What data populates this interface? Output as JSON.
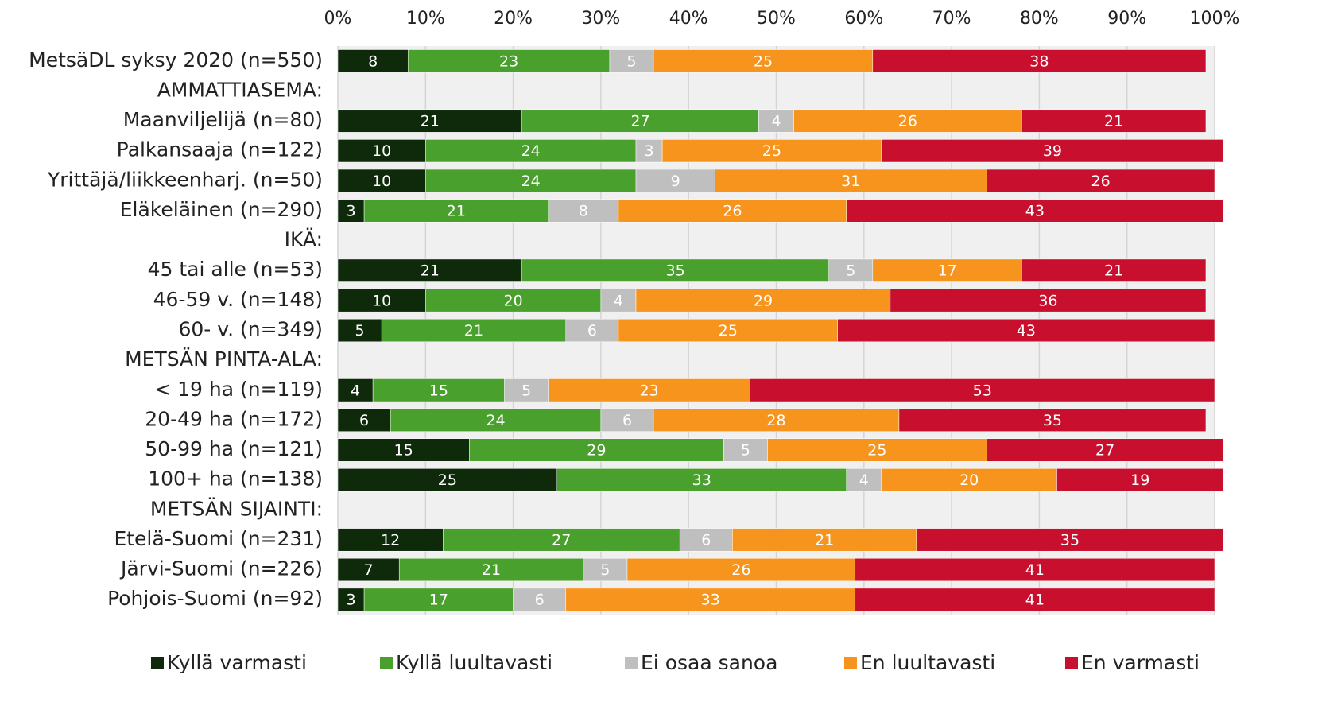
{
  "chart_data": {
    "type": "stacked_bar_horizontal",
    "categories": [
      "MetsäDL syksy 2020 (n=550)",
      "AMMATTIASEMA:",
      "Maanviljelijä (n=80)",
      "Palkansaaja (n=122)",
      "Yrittäjä/liikkeenharj. (n=50)",
      "Eläkeläinen (n=290)",
      "IKÄ:",
      "45 tai alle (n=53)",
      "46-59 v. (n=148)",
      "60- v. (n=349)",
      "METSÄN PINTA-ALA:",
      "< 19 ha (n=119)",
      "20-49 ha (n=172)",
      "50-99 ha (n=121)",
      "100+ ha (n=138)",
      "METSÄN SIJAINTI:",
      "Etelä-Suomi (n=231)",
      "Järvi-Suomi (n=226)",
      "Pohjois-Suomi (n=92)"
    ],
    "series": [
      {
        "name": "Kyllä varmasti",
        "color": "#0e2a0b",
        "values": [
          8,
          null,
          21,
          10,
          10,
          3,
          null,
          21,
          10,
          5,
          null,
          4,
          6,
          15,
          25,
          null,
          12,
          7,
          3
        ]
      },
      {
        "name": "Kyllä luultavasti",
        "color": "#4aa02c",
        "values": [
          23,
          null,
          27,
          24,
          24,
          21,
          null,
          35,
          20,
          21,
          null,
          15,
          24,
          29,
          33,
          null,
          27,
          21,
          17
        ]
      },
      {
        "name": "Ei osaa sanoa",
        "color": "#bfbfbf",
        "values": [
          5,
          null,
          4,
          3,
          9,
          8,
          null,
          5,
          4,
          6,
          null,
          5,
          6,
          5,
          4,
          null,
          6,
          5,
          6
        ]
      },
      {
        "name": "En luultavasti",
        "color": "#f7941d",
        "values": [
          25,
          null,
          26,
          25,
          31,
          26,
          null,
          17,
          29,
          25,
          null,
          23,
          28,
          25,
          20,
          null,
          21,
          26,
          33
        ]
      },
      {
        "name": "En varmasti",
        "color": "#c8102e",
        "values": [
          38,
          null,
          21,
          39,
          26,
          43,
          null,
          21,
          36,
          43,
          null,
          53,
          35,
          27,
          19,
          null,
          35,
          41,
          41
        ]
      }
    ],
    "xlim": [
      0,
      100
    ],
    "xticks": [
      {
        "value": 0,
        "label": "0%"
      },
      {
        "value": 10,
        "label": "10%"
      },
      {
        "value": 20,
        "label": "20%"
      },
      {
        "value": 30,
        "label": "30%"
      },
      {
        "value": 40,
        "label": "40%"
      },
      {
        "value": 50,
        "label": "50%"
      },
      {
        "value": 60,
        "label": "60%"
      },
      {
        "value": 70,
        "label": "70%"
      },
      {
        "value": 80,
        "label": "80%"
      },
      {
        "value": 90,
        "label": "90%"
      },
      {
        "value": 100,
        "label": "100%"
      }
    ],
    "grid": true,
    "legend": "bottom"
  }
}
